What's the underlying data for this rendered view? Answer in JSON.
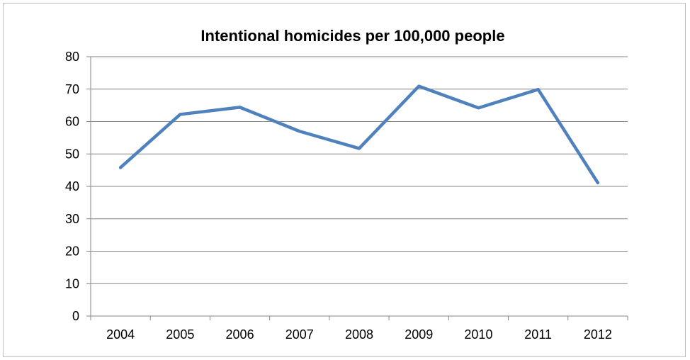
{
  "chart_data": {
    "type": "line",
    "title": "Intentional homicides per 100,000 people",
    "xlabel": "",
    "ylabel": "",
    "categories": [
      "2004",
      "2005",
      "2006",
      "2007",
      "2008",
      "2009",
      "2010",
      "2011",
      "2012"
    ],
    "series": [
      {
        "values": [
          45.8,
          62.2,
          64.4,
          57.0,
          51.7,
          70.9,
          64.2,
          69.9,
          41.1
        ]
      }
    ],
    "ylim": [
      0,
      80
    ],
    "yticks": [
      0,
      10,
      20,
      30,
      40,
      50,
      60,
      70,
      80
    ],
    "grid": true,
    "legend": "none",
    "colors": {
      "line": "#4f81bd",
      "grid": "#868686",
      "axis": "#868686"
    }
  }
}
